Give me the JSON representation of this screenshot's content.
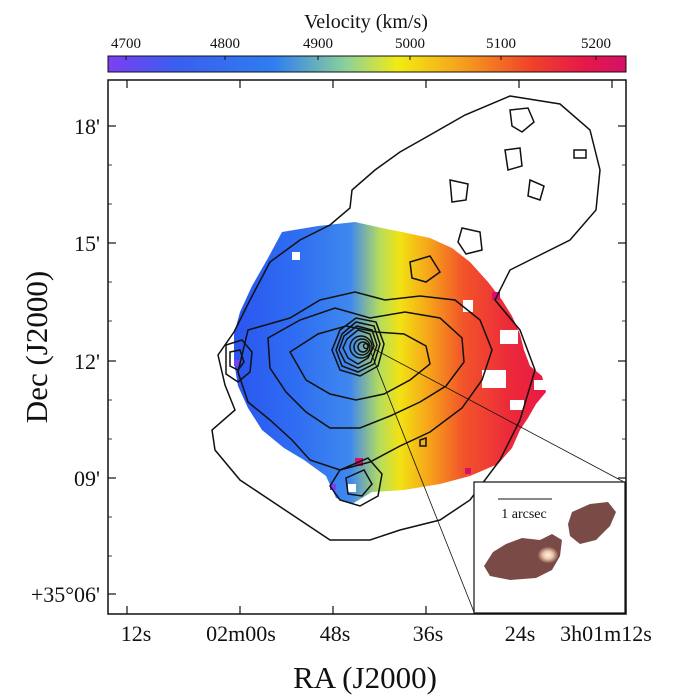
{
  "colorbar": {
    "title": "Velocity (km/s)",
    "ticks": [
      "4700",
      "4800",
      "4900",
      "5000",
      "5100",
      "5200"
    ]
  },
  "axes": {
    "xlabel": "RA (J2000)",
    "ylabel": "Dec (J2000)",
    "x_ticks": [
      "12s",
      "02m00s",
      "48s",
      "36s",
      "24s",
      "3h01m12s"
    ],
    "y_ticks": [
      "18'",
      "15'",
      "12'",
      "09'",
      "+35°06'"
    ]
  },
  "inset": {
    "scale_label": "1 arcsec"
  },
  "colors": {
    "velocity_scale": [
      "#7b3ff2",
      "#2f6ff0",
      "#3f7ff2",
      "#7cc6a4",
      "#f0e60e",
      "#f7a11c",
      "#f04a23",
      "#e8174a",
      "#d6106a"
    ],
    "contour": "#111111",
    "inset_galaxy": "#7a4a46",
    "inset_nucleus": "#f3e6d2"
  }
}
